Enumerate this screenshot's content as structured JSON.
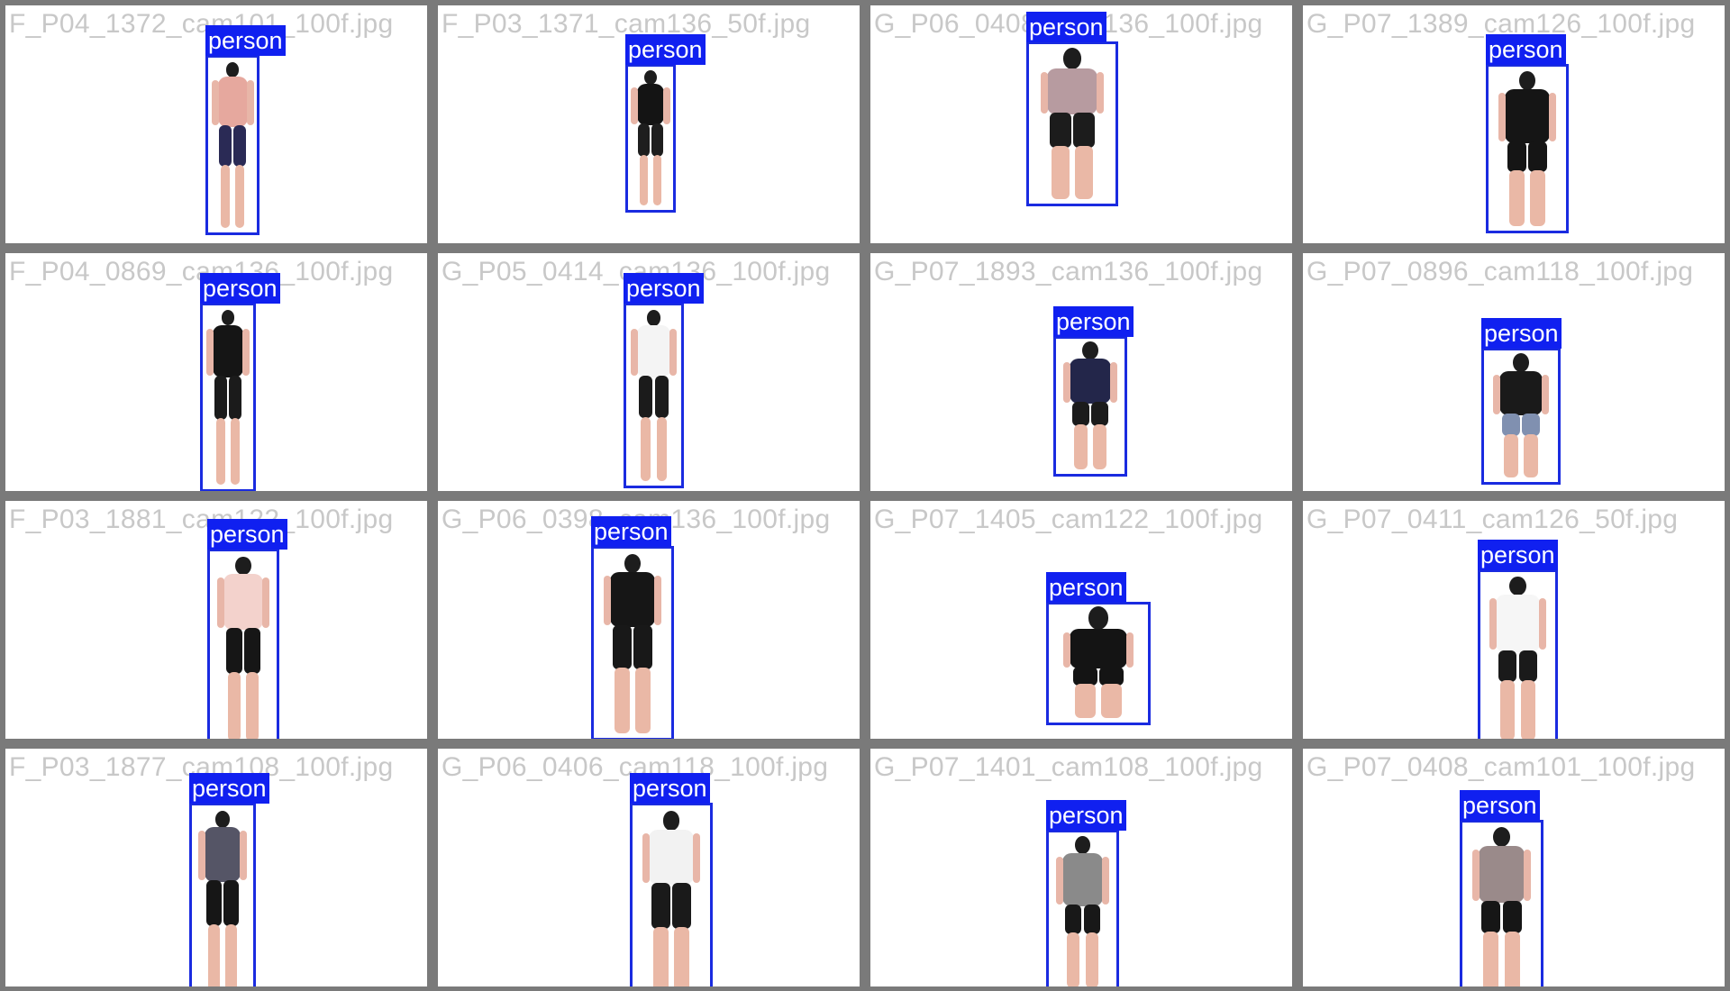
{
  "mosaic": {
    "background": "#7a7a7a",
    "box_color": "#1a2be0",
    "label_bg": "#1020f0",
    "label_text_color": "#ffffff",
    "filename_color": "#c8c8c8"
  },
  "tiles": [
    {
      "filename": "F_P04_1372_cam101_100f.jpg",
      "label": "person",
      "pose": "standing",
      "top": "#e6a89e",
      "bottom": "#2a2a55"
    },
    {
      "filename": "F_P03_1371_cam136_50f.jpg",
      "label": "person",
      "pose": "standing",
      "top": "#141414",
      "bottom": "#1e1e1e"
    },
    {
      "filename": "G_P06_0408_cam136_100f.jpg",
      "label": "person",
      "pose": "standing",
      "top": "#b79ba0",
      "bottom": "#1c1c1c"
    },
    {
      "filename": "G_P07_1389_cam126_100f.jpg",
      "label": "person",
      "pose": "sitting",
      "top": "#151515",
      "bottom": "#151515"
    },
    {
      "filename": "F_P04_0869_cam136_100f.jpg",
      "label": "person",
      "pose": "standing",
      "top": "#151515",
      "bottom": "#1b1b1b"
    },
    {
      "filename": "G_P05_0414_cam136_100f.jpg",
      "label": "person",
      "pose": "standing",
      "top": "#f4f4f4",
      "bottom": "#1b1b1b"
    },
    {
      "filename": "G_P07_1893_cam136_100f.jpg",
      "label": "person",
      "pose": "sitting",
      "top": "#23264a",
      "bottom": "#1b1b1b"
    },
    {
      "filename": "G_P07_0896_cam118_100f.jpg",
      "label": "person",
      "pose": "sitting",
      "top": "#1a1a1a",
      "bottom": "#8090b0"
    },
    {
      "filename": "F_P03_1881_cam122_100f.jpg",
      "label": "person",
      "pose": "standing",
      "top": "#f3d2cc",
      "bottom": "#161616"
    },
    {
      "filename": "G_P06_0398_cam136_100f.jpg",
      "label": "person",
      "pose": "standing",
      "top": "#161616",
      "bottom": "#181818"
    },
    {
      "filename": "G_P07_1405_cam122_100f.jpg",
      "label": "person",
      "pose": "sitting",
      "top": "#141414",
      "bottom": "#141414"
    },
    {
      "filename": "G_P07_0411_cam126_50f.jpg",
      "label": "person",
      "pose": "sitting",
      "top": "#f6f6f6",
      "bottom": "#1a1a1a"
    },
    {
      "filename": "F_P03_1877_cam108_100f.jpg",
      "label": "person",
      "pose": "standing",
      "top": "#555566",
      "bottom": "#161616"
    },
    {
      "filename": "G_P06_0406_cam118_100f.jpg",
      "label": "person",
      "pose": "standing",
      "top": "#f2f2f2",
      "bottom": "#1a1a1a"
    },
    {
      "filename": "G_P07_1401_cam108_100f.jpg",
      "label": "person",
      "pose": "sitting",
      "top": "#8a8a8a",
      "bottom": "#181818"
    },
    {
      "filename": "G_P07_0408_cam101_100f.jpg",
      "label": "person",
      "pose": "sitting",
      "top": "#9a8a8a",
      "bottom": "#161616"
    }
  ]
}
